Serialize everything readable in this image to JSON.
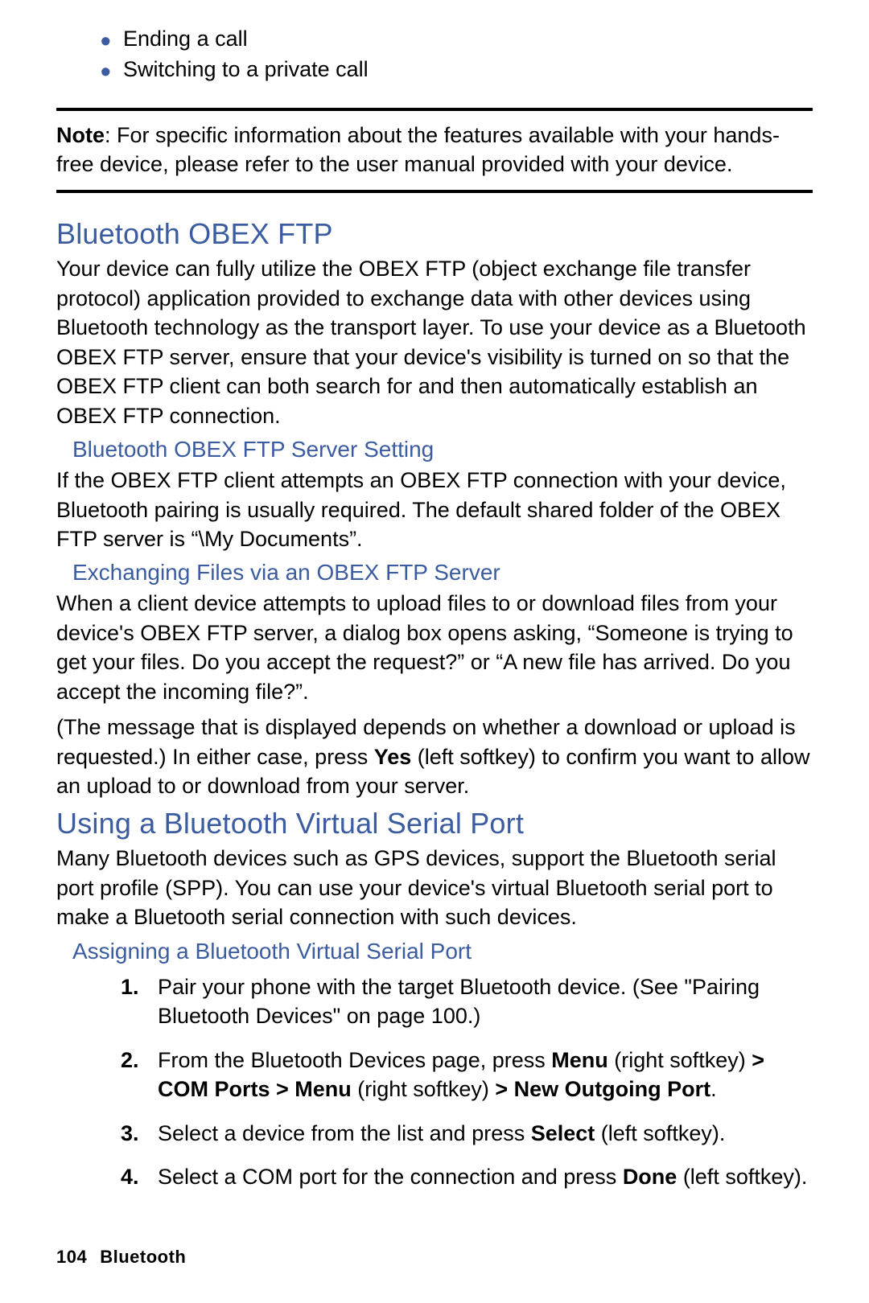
{
  "colors": {
    "accent": "#3b5ca0",
    "text": "#000000",
    "bg": "#ffffff"
  },
  "top_bullets": [
    "Ending a call",
    "Switching to a private call"
  ],
  "note": {
    "label": "Note",
    "text": ": For specific information about the features available with your hands-free device, please refer to the user manual provided with your device."
  },
  "sec1": {
    "heading": "Bluetooth OBEX FTP",
    "para": "Your device can fully utilize the OBEX FTP (object exchange file transfer protocol) application provided to exchange data with other devices using Bluetooth technology as the transport layer. To use your device as a Bluetooth OBEX FTP server, ensure that your device's visibility is turned on so that the OBEX FTP client can both search for and then automatically establish an OBEX FTP connection.",
    "sub1": {
      "heading": "Bluetooth OBEX FTP Server Setting",
      "para": "If the OBEX FTP client attempts an OBEX FTP connection with your device, Bluetooth pairing is usually required. The default shared folder of the OBEX FTP server is “\\My Documents”."
    },
    "sub2": {
      "heading": "Exchanging Files via an OBEX FTP Server",
      "para1": "When a client device attempts to upload files to or download files from your device's OBEX FTP server, a dialog box opens asking, “Someone is trying to get your files. Do you accept the request?” or “A new file has arrived. Do you accept the incoming file?”.",
      "para2_a": "(The message that is displayed depends on whether a download or upload is requested.) In either case, press ",
      "para2_bold": "Yes",
      "para2_b": " (left softkey) to confirm you want to allow an upload to or download from your server."
    }
  },
  "sec2": {
    "heading": "Using a Bluetooth Virtual Serial Port",
    "para": "Many Bluetooth devices such as GPS devices, support the Bluetooth serial port profile (SPP). You can use your device's virtual Bluetooth serial port to make a Bluetooth serial connection with such devices.",
    "sub": {
      "heading": "Assigning a Bluetooth Virtual Serial Port",
      "steps": {
        "s1": "Pair your phone with the target Bluetooth device. (See \"Pairing Bluetooth Devices\" on page 100.)",
        "s2_a": "From the Bluetooth Devices page, press ",
        "s2_b1": "Menu",
        "s2_c": " (right softkey) ",
        "s2_b2": "> COM Ports > Menu",
        "s2_d": " (right softkey) ",
        "s2_b3": "> New Outgoing Port",
        "s2_e": ".",
        "s3_a": "Select a device from the list and press ",
        "s3_b": "Select",
        "s3_c": " (left softkey).",
        "s4_a": "Select a COM port for the connection and press ",
        "s4_b": "Done",
        "s4_c": " (left softkey)."
      }
    }
  },
  "footer": {
    "page": "104",
    "section": "Bluetooth"
  }
}
